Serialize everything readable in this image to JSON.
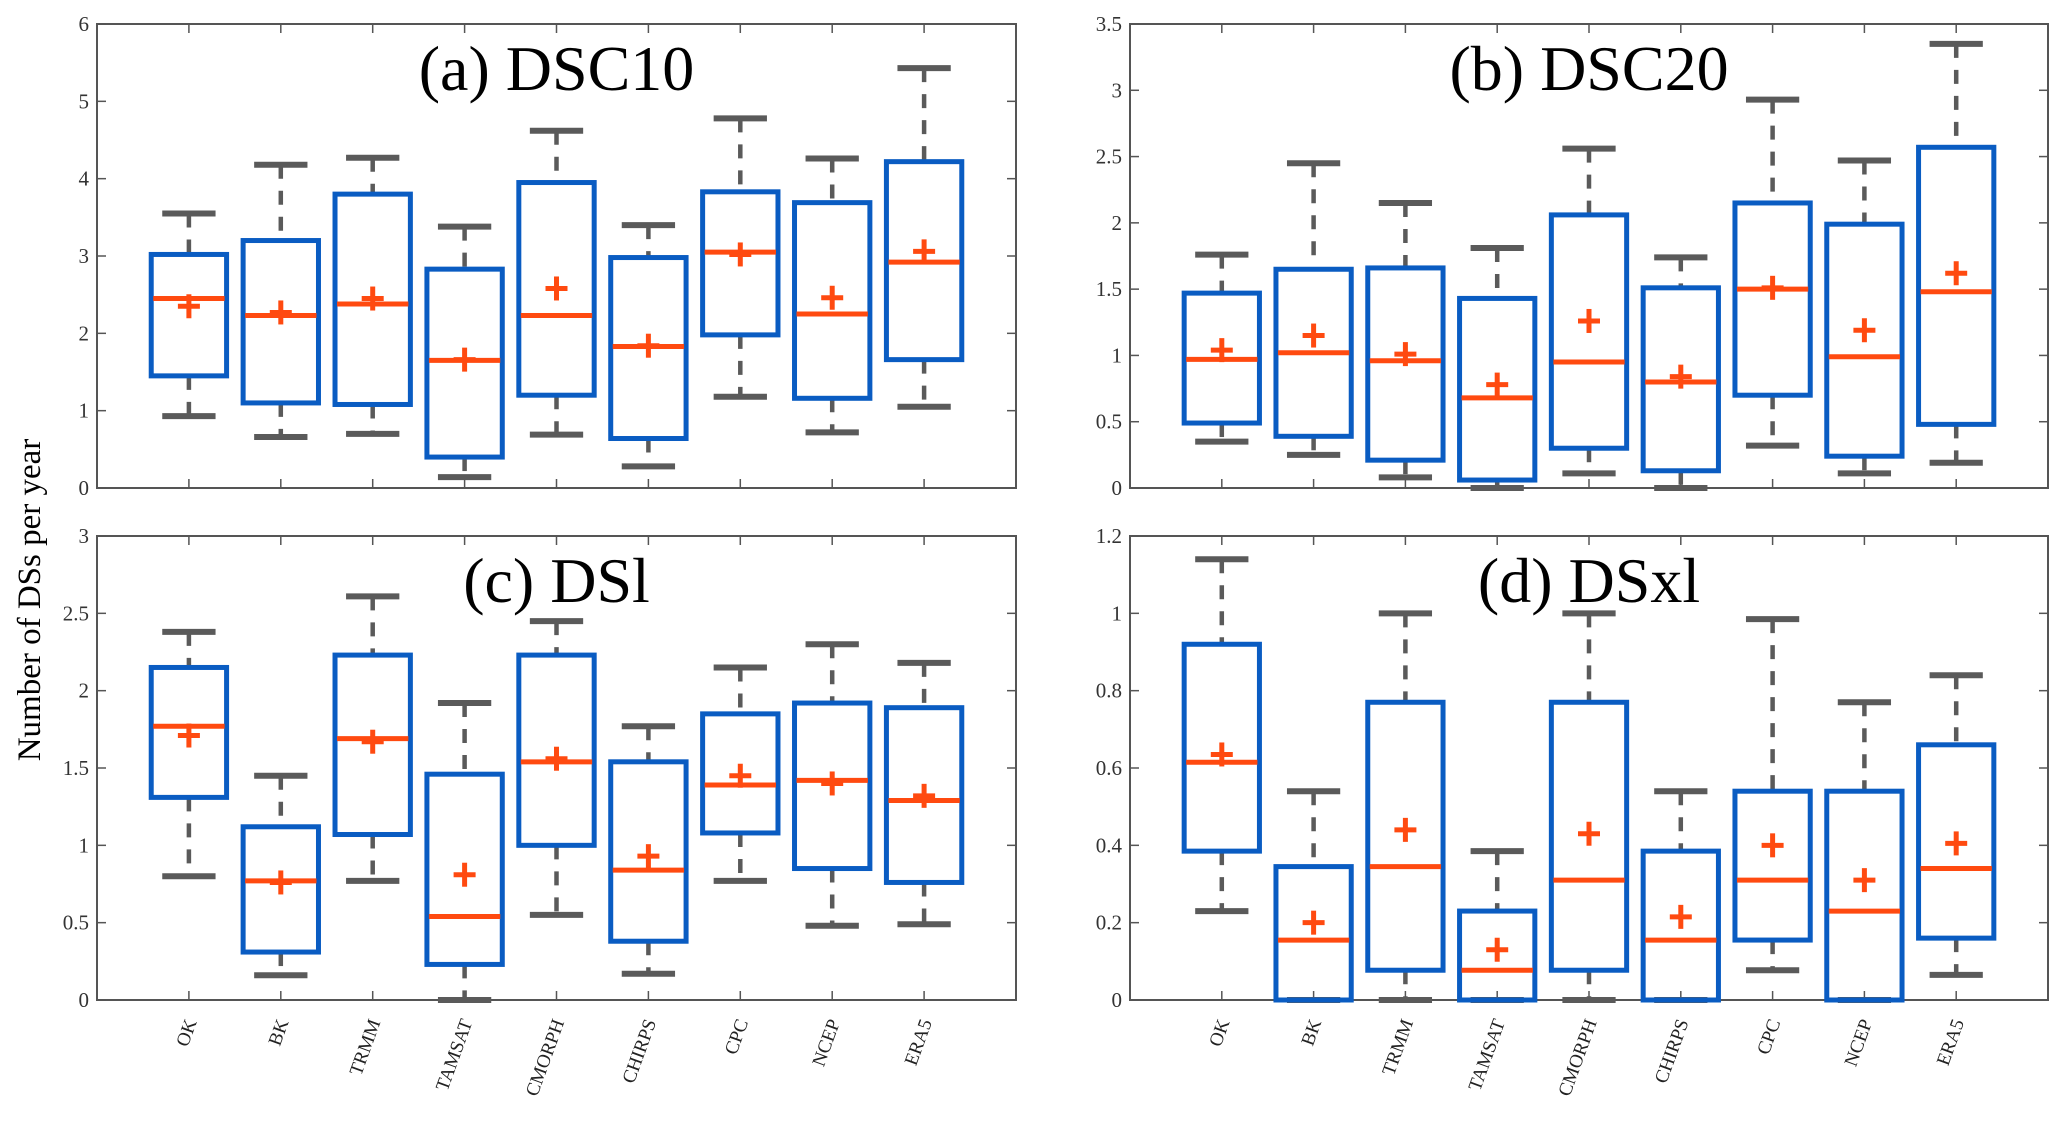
{
  "chart_data": [
    {
      "type": "box",
      "panel": "a",
      "title": "(a) DSC10",
      "ylabel": "Number of DSs per year",
      "ylim": [
        0,
        6
      ],
      "yticks": [
        "0",
        "1",
        "2",
        "3",
        "4",
        "5",
        "6"
      ],
      "categories": [
        "OK",
        "BK",
        "TRMM",
        "TAMSAT",
        "CMORPH",
        "CHIRPS",
        "CPC",
        "NCEP",
        "ERA5"
      ],
      "boxes": [
        {
          "min": 0.93,
          "q1": 1.45,
          "median": 2.45,
          "q3": 3.02,
          "max": 3.55,
          "mean": 2.35
        },
        {
          "min": 0.66,
          "q1": 1.1,
          "median": 2.23,
          "q3": 3.2,
          "max": 4.18,
          "mean": 2.27
        },
        {
          "min": 0.7,
          "q1": 1.08,
          "median": 2.38,
          "q3": 3.8,
          "max": 4.27,
          "mean": 2.45
        },
        {
          "min": 0.14,
          "q1": 0.4,
          "median": 1.65,
          "q3": 2.83,
          "max": 3.38,
          "mean": 1.66
        },
        {
          "min": 0.69,
          "q1": 1.2,
          "median": 2.23,
          "q3": 3.95,
          "max": 4.62,
          "mean": 2.58
        },
        {
          "min": 0.28,
          "q1": 0.64,
          "median": 1.83,
          "q3": 2.98,
          "max": 3.4,
          "mean": 1.84
        },
        {
          "min": 1.18,
          "q1": 1.98,
          "median": 3.05,
          "q3": 3.83,
          "max": 4.78,
          "mean": 3.02
        },
        {
          "min": 0.72,
          "q1": 1.16,
          "median": 2.25,
          "q3": 3.69,
          "max": 4.26,
          "mean": 2.46
        },
        {
          "min": 1.05,
          "q1": 1.66,
          "median": 2.92,
          "q3": 4.22,
          "max": 5.43,
          "mean": 3.06
        }
      ]
    },
    {
      "type": "box",
      "panel": "b",
      "title": "(b) DSC20",
      "ylim": [
        0,
        3.5
      ],
      "yticks": [
        "0",
        "0.5",
        "1",
        "1.5",
        "2",
        "2.5",
        "3",
        "3.5"
      ],
      "categories": [
        "OK",
        "BK",
        "TRMM",
        "TAMSAT",
        "CMORPH",
        "CHIRPS",
        "CPC",
        "NCEP",
        "ERA5"
      ],
      "boxes": [
        {
          "min": 0.35,
          "q1": 0.49,
          "median": 0.97,
          "q3": 1.47,
          "max": 1.76,
          "mean": 1.04
        },
        {
          "min": 0.25,
          "q1": 0.39,
          "median": 1.02,
          "q3": 1.65,
          "max": 2.45,
          "mean": 1.15
        },
        {
          "min": 0.08,
          "q1": 0.21,
          "median": 0.96,
          "q3": 1.66,
          "max": 2.15,
          "mean": 1.01
        },
        {
          "min": 0.0,
          "q1": 0.06,
          "median": 0.68,
          "q3": 1.43,
          "max": 1.81,
          "mean": 0.78
        },
        {
          "min": 0.11,
          "q1": 0.3,
          "median": 0.95,
          "q3": 2.06,
          "max": 2.56,
          "mean": 1.26
        },
        {
          "min": 0.0,
          "q1": 0.13,
          "median": 0.8,
          "q3": 1.51,
          "max": 1.74,
          "mean": 0.84
        },
        {
          "min": 0.32,
          "q1": 0.7,
          "median": 1.5,
          "q3": 2.15,
          "max": 2.93,
          "mean": 1.51
        },
        {
          "min": 0.11,
          "q1": 0.24,
          "median": 0.99,
          "q3": 1.99,
          "max": 2.47,
          "mean": 1.19
        },
        {
          "min": 0.19,
          "q1": 0.48,
          "median": 1.48,
          "q3": 2.57,
          "max": 3.35,
          "mean": 1.62
        }
      ]
    },
    {
      "type": "box",
      "panel": "c",
      "title": "(c) DSl",
      "ylim": [
        0,
        3
      ],
      "yticks": [
        "0",
        "0.5",
        "1",
        "1.5",
        "2",
        "2.5",
        "3"
      ],
      "categories": [
        "OK",
        "BK",
        "TRMM",
        "TAMSAT",
        "CMORPH",
        "CHIRPS",
        "CPC",
        "NCEP",
        "ERA5"
      ],
      "boxes": [
        {
          "min": 0.8,
          "q1": 1.31,
          "median": 1.77,
          "q3": 2.15,
          "max": 2.38,
          "mean": 1.71
        },
        {
          "min": 0.16,
          "q1": 0.31,
          "median": 0.77,
          "q3": 1.12,
          "max": 1.45,
          "mean": 0.76
        },
        {
          "min": 0.77,
          "q1": 1.07,
          "median": 1.69,
          "q3": 2.23,
          "max": 2.61,
          "mean": 1.67
        },
        {
          "min": 0.0,
          "q1": 0.23,
          "median": 0.54,
          "q3": 1.46,
          "max": 1.92,
          "mean": 0.81
        },
        {
          "min": 0.55,
          "q1": 1.0,
          "median": 1.54,
          "q3": 2.23,
          "max": 2.45,
          "mean": 1.56
        },
        {
          "min": 0.17,
          "q1": 0.38,
          "median": 0.84,
          "q3": 1.54,
          "max": 1.77,
          "mean": 0.93
        },
        {
          "min": 0.77,
          "q1": 1.08,
          "median": 1.39,
          "q3": 1.85,
          "max": 2.15,
          "mean": 1.45
        },
        {
          "min": 0.48,
          "q1": 0.85,
          "median": 1.42,
          "q3": 1.92,
          "max": 2.3,
          "mean": 1.4
        },
        {
          "min": 0.49,
          "q1": 0.76,
          "median": 1.29,
          "q3": 1.89,
          "max": 2.18,
          "mean": 1.32
        }
      ]
    },
    {
      "type": "box",
      "panel": "d",
      "title": "(d) DSxl",
      "ylim": [
        0,
        1.2
      ],
      "yticks": [
        "0",
        "0.2",
        "0.4",
        "0.6",
        "0.8",
        "1",
        "1.2"
      ],
      "categories": [
        "OK",
        "BK",
        "TRMM",
        "TAMSAT",
        "CMORPH",
        "CHIRPS",
        "CPC",
        "NCEP",
        "ERA5"
      ],
      "boxes": [
        {
          "min": 0.23,
          "q1": 0.385,
          "median": 0.615,
          "q3": 0.92,
          "max": 1.14,
          "mean": 0.635
        },
        {
          "min": 0.0,
          "q1": 0.0,
          "median": 0.155,
          "q3": 0.345,
          "max": 0.54,
          "mean": 0.2
        },
        {
          "min": 0.0,
          "q1": 0.077,
          "median": 0.345,
          "q3": 0.77,
          "max": 1.0,
          "mean": 0.44
        },
        {
          "min": 0.0,
          "q1": 0.0,
          "median": 0.077,
          "q3": 0.23,
          "max": 0.385,
          "mean": 0.13
        },
        {
          "min": 0.0,
          "q1": 0.077,
          "median": 0.31,
          "q3": 0.77,
          "max": 1.0,
          "mean": 0.43
        },
        {
          "min": 0.0,
          "q1": 0.0,
          "median": 0.155,
          "q3": 0.385,
          "max": 0.54,
          "mean": 0.215
        },
        {
          "min": 0.077,
          "q1": 0.155,
          "median": 0.31,
          "q3": 0.54,
          "max": 0.985,
          "mean": 0.4
        },
        {
          "min": 0.0,
          "q1": 0.0,
          "median": 0.23,
          "q3": 0.54,
          "max": 0.77,
          "mean": 0.31
        },
        {
          "min": 0.065,
          "q1": 0.16,
          "median": 0.34,
          "q3": 0.66,
          "max": 0.84,
          "mean": 0.405
        }
      ]
    }
  ],
  "figure": {
    "ylabel": "Number of DSs per year",
    "colors": {
      "box": "#0a5cc2",
      "median": "#ff4a10",
      "mean": "#ff4a10",
      "whisker": "#5a5a5a"
    }
  }
}
